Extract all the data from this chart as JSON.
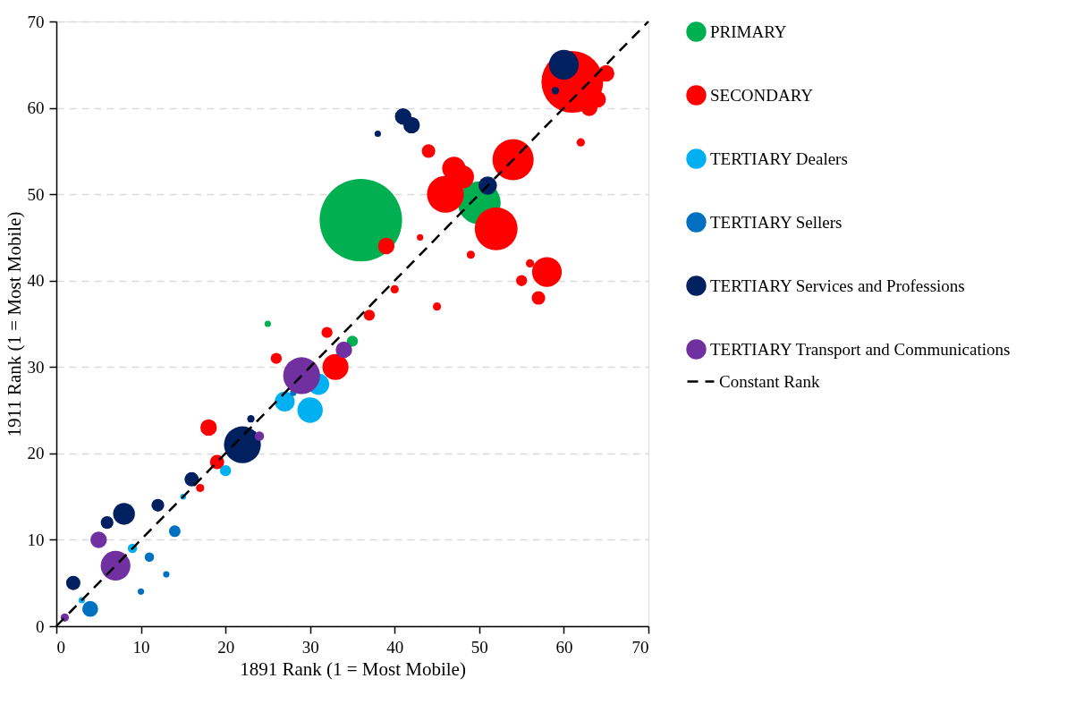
{
  "chart_data": {
    "type": "bubble",
    "xlabel": "1891 Rank (1 = Most Mobile)",
    "ylabel": "1911 Rank (1 = Most Mobile)",
    "xlim": [
      0,
      70
    ],
    "ylim": [
      0,
      70
    ],
    "xticks": [
      0,
      10,
      20,
      30,
      40,
      50,
      60,
      70
    ],
    "yticks": [
      0,
      10,
      20,
      30,
      40,
      50,
      60,
      70
    ],
    "grid": "y",
    "legend": "right",
    "series": [
      {
        "name": "PRIMARY",
        "color": "#00b050",
        "x": [
          36,
          50,
          25,
          35
        ],
        "values": [
          47,
          49,
          35,
          33
        ],
        "sizes": [
          1,
          0.27,
          0.006,
          0.018
        ]
      },
      {
        "name": "SECONDARY",
        "color": "#ff0000",
        "x": [
          61,
          65,
          64,
          63,
          62,
          54,
          47,
          48,
          46,
          52,
          44,
          39,
          43,
          49,
          58,
          56,
          55,
          57,
          40,
          45,
          37,
          32,
          26,
          33,
          18,
          19,
          17
        ],
        "values": [
          63,
          64,
          61,
          60,
          56,
          54,
          53,
          52,
          50,
          46,
          55,
          44,
          45,
          43,
          41,
          42,
          40,
          38,
          39,
          37,
          36,
          34,
          31,
          30,
          23,
          19,
          16
        ],
        "sizes": [
          0.56,
          0.04,
          0.04,
          0.04,
          0.01,
          0.25,
          0.08,
          0.08,
          0.2,
          0.27,
          0.027,
          0.04,
          0.006,
          0.01,
          0.13,
          0.01,
          0.018,
          0.027,
          0.01,
          0.01,
          0.018,
          0.018,
          0.018,
          0.1,
          0.04,
          0.03,
          0.01
        ]
      },
      {
        "name": "TERTIARY Dealers",
        "color": "#00b0f0",
        "x": [
          31,
          27,
          30,
          20,
          15,
          9,
          3
        ],
        "values": [
          28,
          26,
          25,
          18,
          15,
          9,
          3
        ],
        "sizes": [
          0.067,
          0.058,
          0.095,
          0.018,
          0.005,
          0.013,
          0.006
        ]
      },
      {
        "name": "TERTIARY Sellers",
        "color": "#0070c0",
        "x": [
          28,
          14,
          11,
          13,
          10,
          4
        ],
        "values": [
          27,
          11,
          8,
          6,
          4,
          2
        ],
        "sizes": [
          0.006,
          0.02,
          0.013,
          0.006,
          0.006,
          0.037
        ]
      },
      {
        "name": "TERTIARY Services and Professions",
        "color": "#002060",
        "x": [
          60,
          59,
          51,
          41,
          42,
          38,
          22,
          23,
          16,
          12,
          8,
          6,
          2
        ],
        "values": [
          65,
          62,
          51,
          59,
          58,
          57,
          21,
          24,
          17,
          14,
          13,
          12,
          5
        ],
        "sizes": [
          0.13,
          0.008,
          0.05,
          0.04,
          0.04,
          0.006,
          0.2,
          0.008,
          0.03,
          0.024,
          0.07,
          0.024,
          0.03
        ]
      },
      {
        "name": "TERTIARY Transport and Communications",
        "color": "#7030a0",
        "x": [
          29,
          34,
          24,
          5,
          7,
          1
        ],
        "values": [
          29,
          32,
          22,
          10,
          7,
          1
        ],
        "sizes": [
          0.2,
          0.04,
          0.013,
          0.04,
          0.13,
          0.01
        ]
      },
      {
        "name": "Constant Rank",
        "type": "line",
        "color": "#000000",
        "line_style": "dashed",
        "x": [
          0,
          70
        ],
        "values": [
          0,
          70
        ]
      }
    ]
  }
}
